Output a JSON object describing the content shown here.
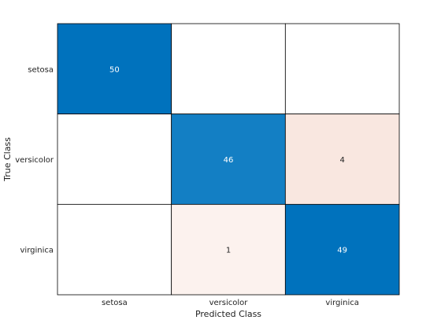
{
  "chart_data": {
    "type": "heatmap",
    "title": "",
    "xlabel": "Predicted Class",
    "ylabel": "True Class",
    "x_categories": [
      "setosa",
      "versicolor",
      "virginica"
    ],
    "y_categories": [
      "setosa",
      "versicolor",
      "virginica"
    ],
    "values": [
      [
        50,
        null,
        null
      ],
      [
        null,
        46,
        4
      ],
      [
        null,
        1,
        49
      ]
    ],
    "colors": {
      "diagonal_high": "#0072BD",
      "diagonal_mid": "#137FC4",
      "offdiag_4": "#F9E7E0",
      "offdiag_1": "#FCF2EE",
      "empty": "#FFFFFF",
      "grid": "#000000",
      "text_on_dark": "#FFFFFF",
      "text_on_light": "#222222"
    }
  }
}
